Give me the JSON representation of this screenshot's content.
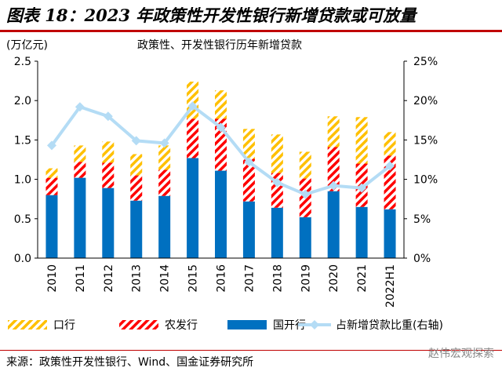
{
  "header": {
    "title": "图表 18：2023 年政策性开发性银行新增贷款或可放量"
  },
  "source": "来源：政策性开发性银行、Wind、国金证券研究所",
  "watermark": "赵伟宏观探索",
  "colors": {
    "koushang": "#ffc000",
    "nongfa": "#ff0000",
    "guokai": "#0070c0",
    "ratio_line": "#b4dcf5",
    "rule": "#c00000"
  },
  "chart_data": {
    "type": "bar",
    "stacked": true,
    "title": "政策性、开发性银行历年新增贷款",
    "left_unit": "(万亿元)",
    "categories": [
      "2010",
      "2011",
      "2012",
      "2013",
      "2014",
      "2015",
      "2016",
      "2017",
      "2018",
      "2019",
      "2020",
      "2021",
      "2022H1"
    ],
    "series": [
      {
        "name": "国开行",
        "kind": "bar",
        "values": [
          0.8,
          1.02,
          0.89,
          0.73,
          0.79,
          1.27,
          1.11,
          0.72,
          0.64,
          0.52,
          0.85,
          0.65,
          0.62
        ]
      },
      {
        "name": "农发行",
        "kind": "bar",
        "values": [
          0.22,
          0.2,
          0.32,
          0.32,
          0.33,
          0.5,
          0.66,
          0.54,
          0.44,
          0.49,
          0.56,
          0.55,
          0.68
        ]
      },
      {
        "name": "口行",
        "kind": "bar",
        "values": [
          0.12,
          0.21,
          0.27,
          0.27,
          0.31,
          0.47,
          0.36,
          0.38,
          0.49,
          0.34,
          0.39,
          0.59,
          0.3
        ]
      },
      {
        "name": "占新增贷款比重(右轴)",
        "kind": "line",
        "axis": "right",
        "values": [
          14.3,
          19.2,
          18.0,
          14.9,
          14.6,
          19.3,
          16.6,
          12.2,
          9.6,
          8.1,
          9.2,
          8.9,
          11.7
        ]
      }
    ],
    "ylim": [
      0,
      2.5
    ],
    "yticks": [
      "0.0",
      "0.5",
      "1.0",
      "1.5",
      "2.0",
      "2.5"
    ],
    "y2lim": [
      0,
      25
    ],
    "y2ticks": [
      "0%",
      "5%",
      "10%",
      "15%",
      "20%",
      "25%"
    ],
    "legend": {
      "position": "bottom",
      "items": [
        {
          "label": "口行",
          "key": "koushang"
        },
        {
          "label": "农发行",
          "key": "nongfa"
        },
        {
          "label": "国开行",
          "key": "guokai"
        },
        {
          "label": "占新增贷款比重(右轴)",
          "key": "ratio_line"
        }
      ]
    },
    "grid": false
  }
}
